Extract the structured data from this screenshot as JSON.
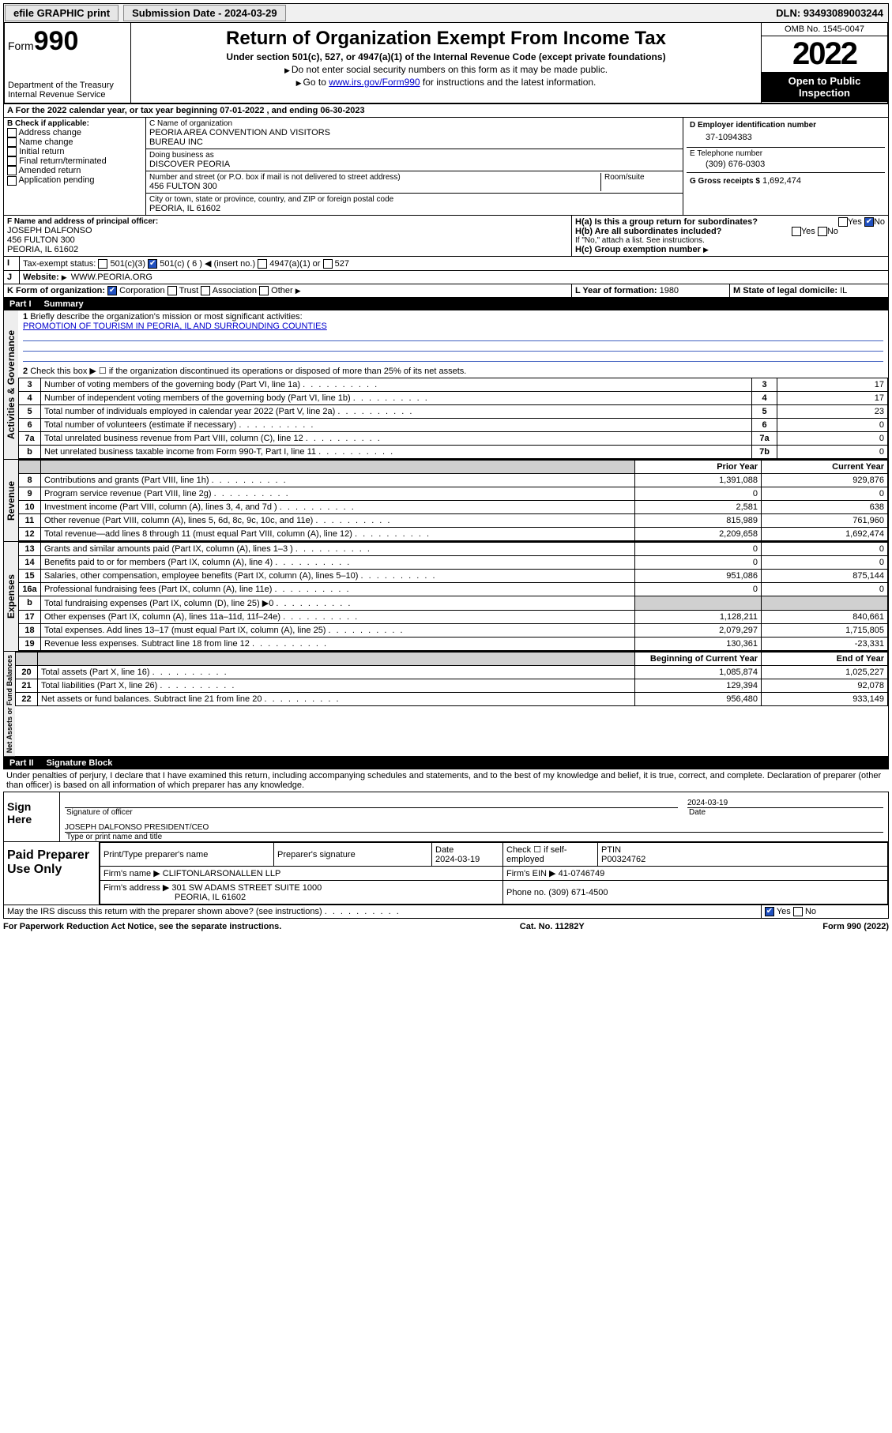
{
  "topbar": {
    "efile": "efile GRAPHIC print",
    "submission_label": "Submission Date - 2024-03-29",
    "dln_label": "DLN: 93493089003244"
  },
  "header": {
    "form_word": "Form",
    "form_num": "990",
    "dept": "Department of the Treasury",
    "irs": "Internal Revenue Service",
    "title": "Return of Organization Exempt From Income Tax",
    "sub1": "Under section 501(c), 527, or 4947(a)(1) of the Internal Revenue Code (except private foundations)",
    "sub2": "Do not enter social security numbers on this form as it may be made public.",
    "sub3a": "Go to ",
    "sub3_link": "www.irs.gov/Form990",
    "sub3b": " for instructions and the latest information.",
    "omb": "OMB No. 1545-0047",
    "year": "2022",
    "open": "Open to Public Inspection"
  },
  "line_a": "For the 2022 calendar year, or tax year beginning 07-01-2022   , and ending 06-30-2023",
  "box_b": {
    "header": "B Check if applicable:",
    "items": [
      "Address change",
      "Name change",
      "Initial return",
      "Final return/terminated",
      "Amended return",
      "Application pending"
    ]
  },
  "box_c": {
    "label_name": "C Name of organization",
    "name1": "PEORIA AREA CONVENTION AND VISITORS",
    "name2": "BUREAU INC",
    "dba_label": "Doing business as",
    "dba": "DISCOVER PEORIA",
    "addr_label": "Number and street (or P.O. box if mail is not delivered to street address)",
    "room_label": "Room/suite",
    "addr": "456 FULTON 300",
    "city_label": "City or town, state or province, country, and ZIP or foreign postal code",
    "city": "PEORIA, IL  61602"
  },
  "box_d": {
    "label": "D Employer identification number",
    "value": "37-1094383"
  },
  "box_e": {
    "label": "E Telephone number",
    "value": "(309) 676-0303"
  },
  "box_g": {
    "label": "G Gross receipts $",
    "value": "1,692,474"
  },
  "box_f": {
    "label": "F Name and address of principal officer:",
    "name": "JOSEPH DALFONSO",
    "addr1": "456 FULTON 300",
    "addr2": "PEORIA, IL  61602"
  },
  "box_h": {
    "a": "H(a)  Is this a group return for subordinates?",
    "b": "H(b)  Are all subordinates included?",
    "b2": "If \"No,\" attach a list. See instructions.",
    "c": "H(c)  Group exemption number",
    "yes": "Yes",
    "no": "No"
  },
  "box_i": {
    "label": "Tax-exempt status:",
    "opts": [
      "501(c)(3)",
      "501(c) ( 6 ) ◀ (insert no.)",
      "4947(a)(1) or",
      "527"
    ]
  },
  "box_j": {
    "label": "Website:",
    "value": "WWW.PEORIA.ORG"
  },
  "box_k": {
    "label": "K Form of organization:",
    "opts": [
      "Corporation",
      "Trust",
      "Association",
      "Other"
    ]
  },
  "box_l": {
    "label": "L Year of formation:",
    "value": "1980"
  },
  "box_m": {
    "label": "M State of legal domicile:",
    "value": "IL"
  },
  "part1": {
    "bar": "Part I",
    "title": "Summary"
  },
  "p1_q1": {
    "label": "Briefly describe the organization's mission or most significant activities:",
    "value": "PROMOTION OF TOURISM IN PEORIA, IL AND SURROUNDING COUNTIES"
  },
  "p1_q2": "Check this box ▶ ☐  if the organization discontinued its operations or disposed of more than 25% of its net assets.",
  "p1_lines_gov": [
    {
      "n": "3",
      "t": "Number of voting members of the governing body (Part VI, line 1a)",
      "box": "3",
      "v": "17"
    },
    {
      "n": "4",
      "t": "Number of independent voting members of the governing body (Part VI, line 1b)",
      "box": "4",
      "v": "17"
    },
    {
      "n": "5",
      "t": "Total number of individuals employed in calendar year 2022 (Part V, line 2a)",
      "box": "5",
      "v": "23"
    },
    {
      "n": "6",
      "t": "Total number of volunteers (estimate if necessary)",
      "box": "6",
      "v": "0"
    },
    {
      "n": "7a",
      "t": "Total unrelated business revenue from Part VIII, column (C), line 12",
      "box": "7a",
      "v": "0"
    },
    {
      "n": "b",
      "t": "Net unrelated business taxable income from Form 990-T, Part I, line 11",
      "box": "7b",
      "v": "0"
    }
  ],
  "col_headers": {
    "prior": "Prior Year",
    "current": "Current Year",
    "boy": "Beginning of Current Year",
    "eoy": "End of Year"
  },
  "rev": [
    {
      "n": "8",
      "t": "Contributions and grants (Part VIII, line 1h)",
      "p": "1,391,088",
      "c": "929,876"
    },
    {
      "n": "9",
      "t": "Program service revenue (Part VIII, line 2g)",
      "p": "0",
      "c": "0"
    },
    {
      "n": "10",
      "t": "Investment income (Part VIII, column (A), lines 3, 4, and 7d )",
      "p": "2,581",
      "c": "638"
    },
    {
      "n": "11",
      "t": "Other revenue (Part VIII, column (A), lines 5, 6d, 8c, 9c, 10c, and 11e)",
      "p": "815,989",
      "c": "761,960"
    },
    {
      "n": "12",
      "t": "Total revenue—add lines 8 through 11 (must equal Part VIII, column (A), line 12)",
      "p": "2,209,658",
      "c": "1,692,474"
    }
  ],
  "exp": [
    {
      "n": "13",
      "t": "Grants and similar amounts paid (Part IX, column (A), lines 1–3 )",
      "p": "0",
      "c": "0"
    },
    {
      "n": "14",
      "t": "Benefits paid to or for members (Part IX, column (A), line 4)",
      "p": "0",
      "c": "0"
    },
    {
      "n": "15",
      "t": "Salaries, other compensation, employee benefits (Part IX, column (A), lines 5–10)",
      "p": "951,086",
      "c": "875,144"
    },
    {
      "n": "16a",
      "t": "Professional fundraising fees (Part IX, column (A), line 11e)",
      "p": "0",
      "c": "0"
    },
    {
      "n": "b",
      "t": "Total fundraising expenses (Part IX, column (D), line 25) ▶0",
      "p": "",
      "c": "",
      "shade": true
    },
    {
      "n": "17",
      "t": "Other expenses (Part IX, column (A), lines 11a–11d, 11f–24e)",
      "p": "1,128,211",
      "c": "840,661"
    },
    {
      "n": "18",
      "t": "Total expenses. Add lines 13–17 (must equal Part IX, column (A), line 25)",
      "p": "2,079,297",
      "c": "1,715,805"
    },
    {
      "n": "19",
      "t": "Revenue less expenses. Subtract line 18 from line 12",
      "p": "130,361",
      "c": "-23,331"
    }
  ],
  "net": [
    {
      "n": "20",
      "t": "Total assets (Part X, line 16)",
      "p": "1,085,874",
      "c": "1,025,227"
    },
    {
      "n": "21",
      "t": "Total liabilities (Part X, line 26)",
      "p": "129,394",
      "c": "92,078"
    },
    {
      "n": "22",
      "t": "Net assets or fund balances. Subtract line 21 from line 20",
      "p": "956,480",
      "c": "933,149"
    }
  ],
  "vlabels": {
    "gov": "Activities & Governance",
    "rev": "Revenue",
    "exp": "Expenses",
    "net": "Net Assets or Fund Balances"
  },
  "part2": {
    "bar": "Part II",
    "title": "Signature Block"
  },
  "penalties": "Under penalties of perjury, I declare that I have examined this return, including accompanying schedules and statements, and to the best of my knowledge and belief, it is true, correct, and complete. Declaration of preparer (other than officer) is based on all information of which preparer has any knowledge.",
  "sign": {
    "here": "Sign Here",
    "sig_label": "Signature of officer",
    "date_label": "Date",
    "date": "2024-03-19",
    "name": "JOSEPH DALFONSO  PRESIDENT/CEO",
    "name_label": "Type or print name and title"
  },
  "prep": {
    "title": "Paid Preparer Use Only",
    "h": [
      "Print/Type preparer's name",
      "Preparer's signature",
      "Date",
      "",
      "PTIN"
    ],
    "date": "2024-03-19",
    "self": "Check ☐ if self-employed",
    "ptin": "P00324762",
    "firm_label": "Firm's name   ▶",
    "firm": "CLIFTONLARSONALLEN LLP",
    "ein_label": "Firm's EIN ▶",
    "ein": "41-0746749",
    "addr_label": "Firm's address ▶",
    "addr1": "301 SW ADAMS STREET SUITE 1000",
    "addr2": "PEORIA, IL  61602",
    "phone_label": "Phone no.",
    "phone": "(309) 671-4500"
  },
  "discuss": "May the IRS discuss this return with the preparer shown above? (see instructions)",
  "discuss_yes": "Yes",
  "discuss_no": "No",
  "footer": {
    "left": "For Paperwork Reduction Act Notice, see the separate instructions.",
    "mid": "Cat. No. 11282Y",
    "right": "Form 990 (2022)"
  }
}
